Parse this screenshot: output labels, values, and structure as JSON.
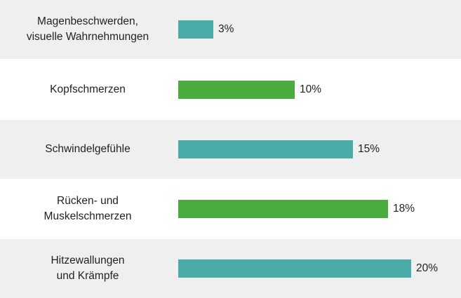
{
  "chart_data": {
    "type": "bar",
    "orientation": "horizontal",
    "categories": [
      "Magenbeschwerden,\nvisuelle Wahrnehmungen",
      "Kopfschmerzen",
      "Schwindelgefühle",
      "Rücken- und\nMuskelschmerzen",
      "Hitzewallungen\nund Krämpfe"
    ],
    "values": [
      3,
      10,
      15,
      18,
      20
    ],
    "value_labels": [
      "3%",
      "10%",
      "15%",
      "18%",
      "20%"
    ],
    "unit": "%",
    "xlim": [
      0,
      20
    ],
    "bar_colors": [
      "#4aaba7",
      "#4aac3e",
      "#4aaba7",
      "#4aac3e",
      "#4aaba7"
    ],
    "row_background_colors": [
      "#efefef",
      "#ffffff",
      "#efefef",
      "#ffffff",
      "#efefef"
    ],
    "title": "",
    "xlabel": "",
    "ylabel": "",
    "grid": false,
    "legend": false
  }
}
